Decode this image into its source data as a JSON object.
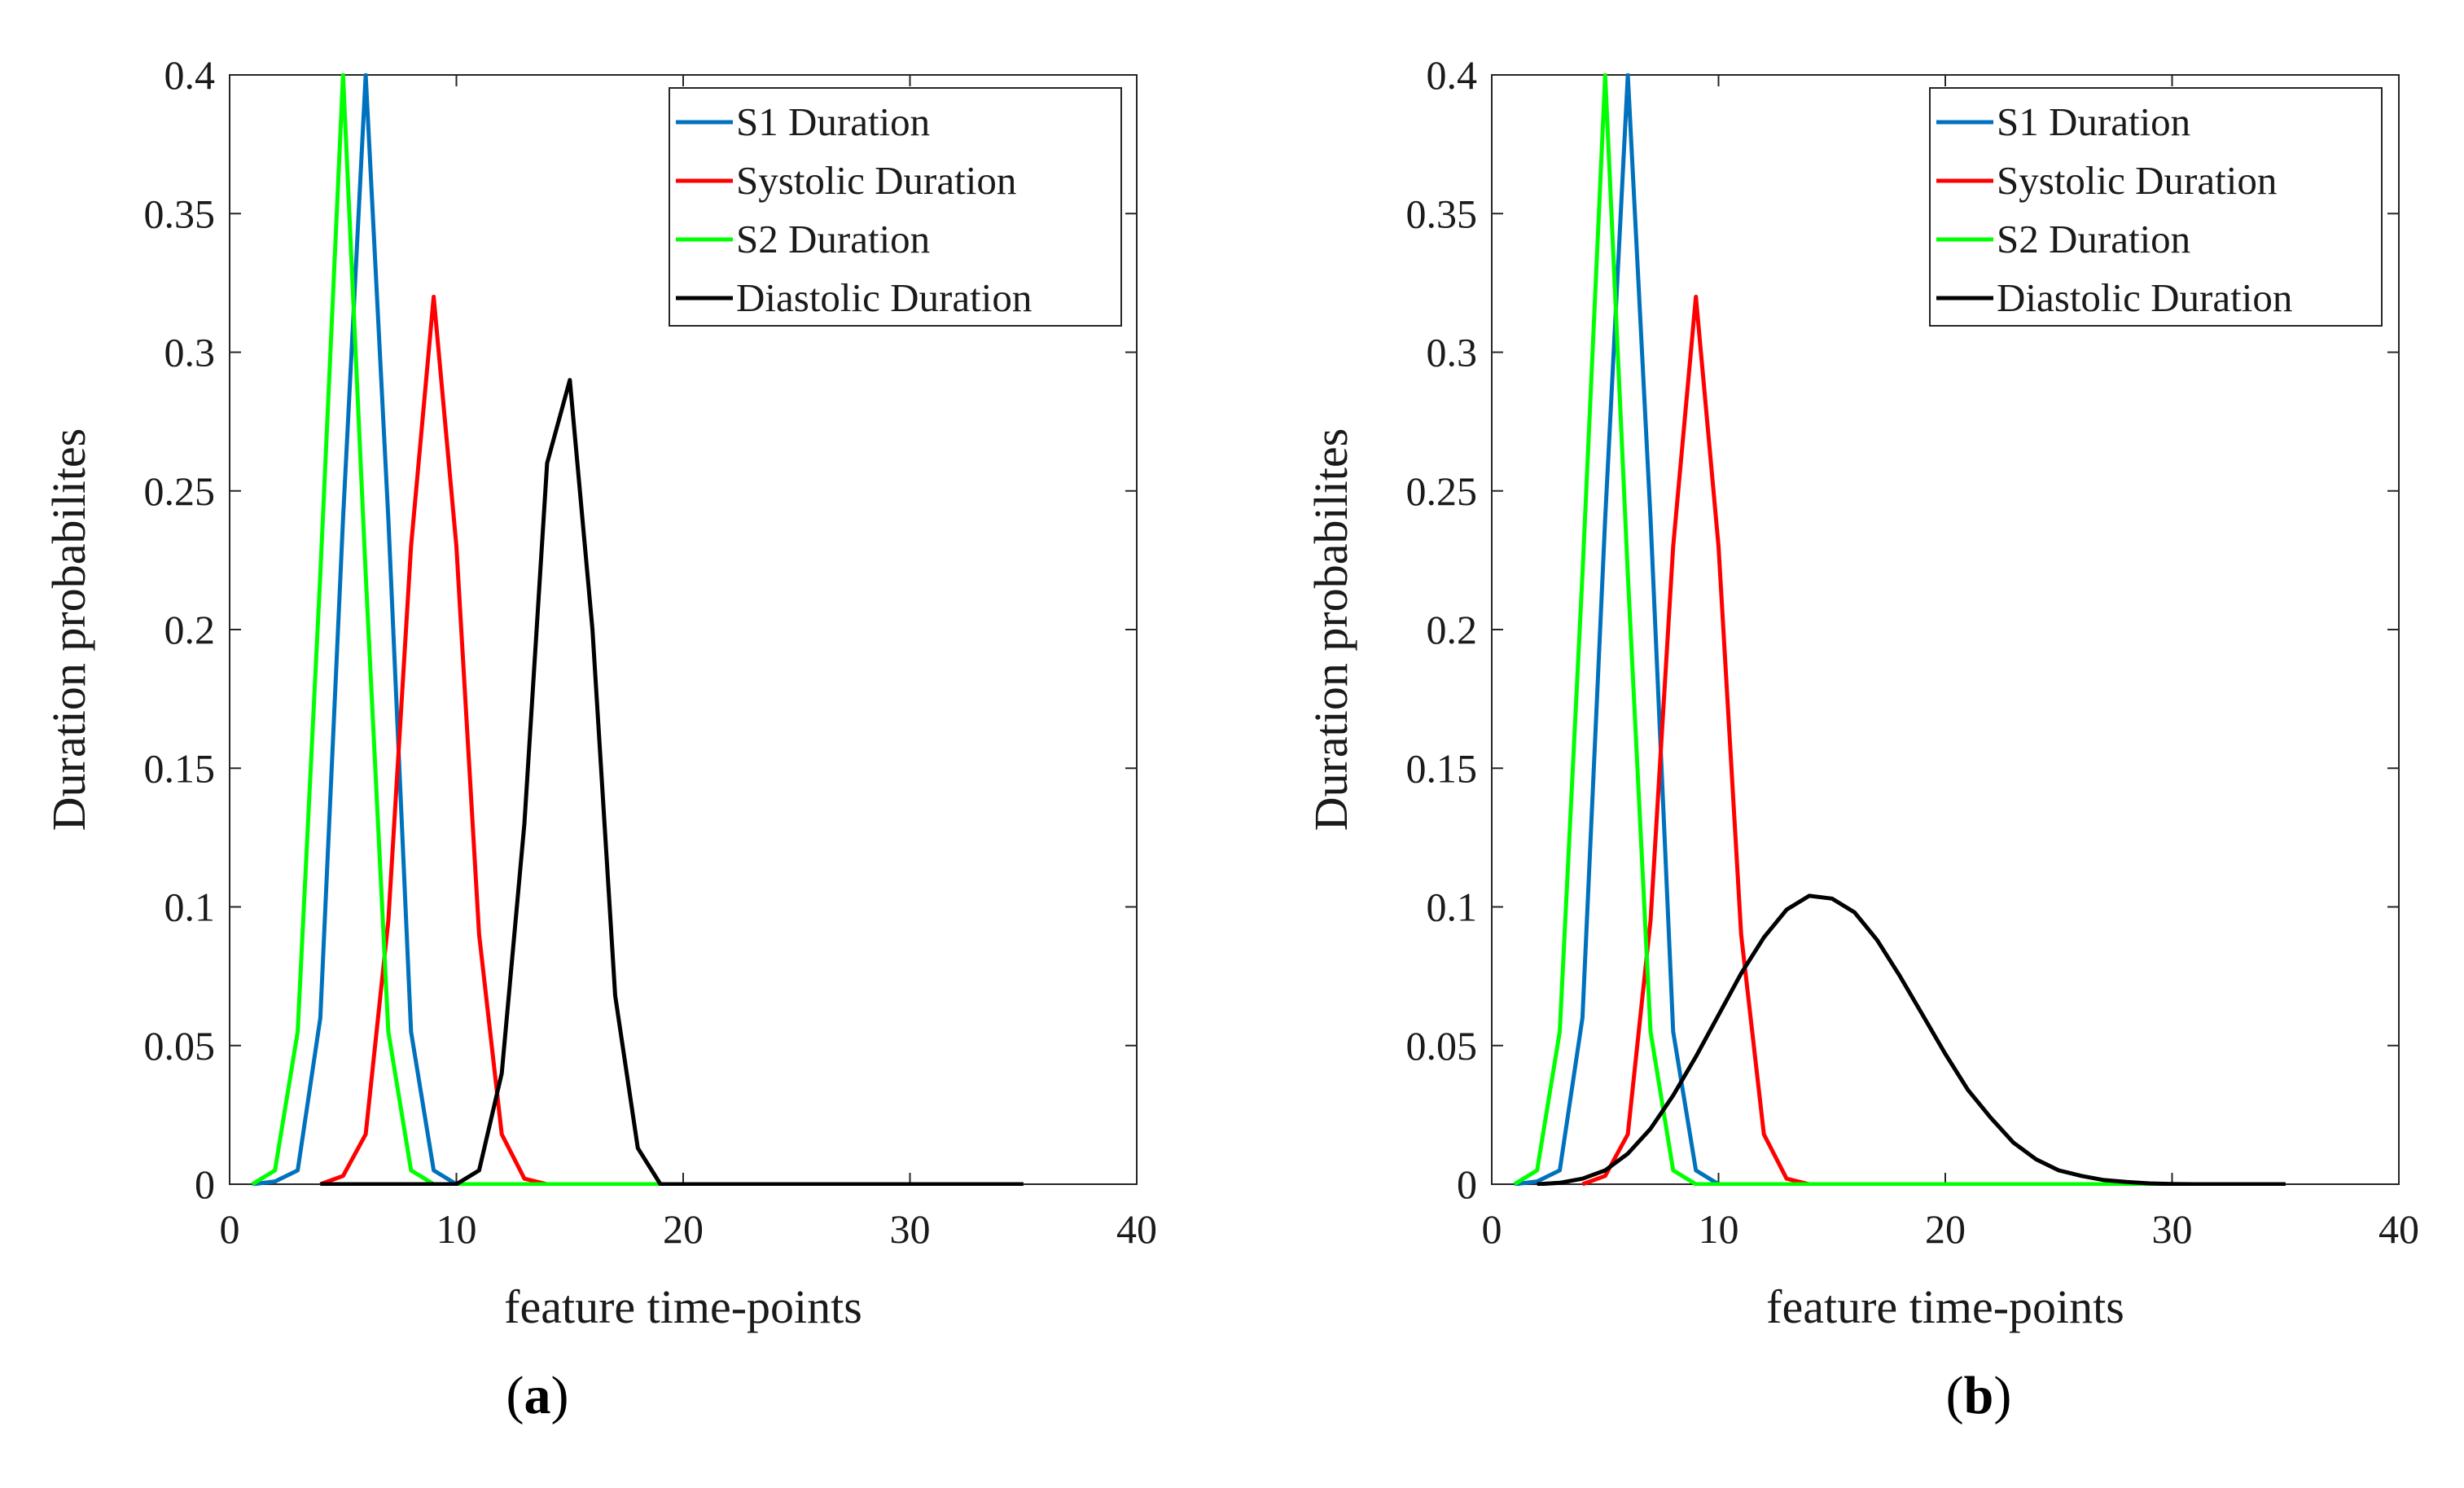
{
  "chart_data": [
    {
      "type": "line",
      "panel_label": "a",
      "xlabel": "feature time-points",
      "ylabel": "Duration probabilites",
      "xlim": [
        0,
        40
      ],
      "ylim": [
        0,
        0.4
      ],
      "xticks": [
        "0",
        "10",
        "20",
        "30",
        "40"
      ],
      "yticks": [
        "0",
        "0.05",
        "0.1",
        "0.15",
        "0.2",
        "0.25",
        "0.3",
        "0.35",
        "0.4"
      ],
      "legend_position": "top-right",
      "series": [
        {
          "name": "S1 Duration",
          "color": "#0072BD",
          "x": [
            1,
            2,
            3,
            4,
            5,
            6,
            7,
            8,
            9,
            10,
            11,
            12,
            13,
            14,
            15,
            16,
            17,
            18,
            19,
            20,
            25,
            30,
            35
          ],
          "y": [
            0,
            0.001,
            0.005,
            0.06,
            0.24,
            0.4,
            0.24,
            0.055,
            0.005,
            0,
            0,
            0,
            0,
            0,
            0,
            0,
            0,
            0,
            0,
            0,
            0,
            0,
            0
          ]
        },
        {
          "name": "Systolic Duration",
          "color": "#FF0000",
          "x": [
            4,
            5,
            6,
            7,
            8,
            9,
            10,
            11,
            12,
            13,
            14,
            15,
            20,
            25,
            30,
            35
          ],
          "y": [
            0,
            0.003,
            0.018,
            0.095,
            0.23,
            0.32,
            0.23,
            0.09,
            0.018,
            0.002,
            0,
            0,
            0,
            0,
            0,
            0
          ]
        },
        {
          "name": "S2 Duration",
          "color": "#00FF00",
          "x": [
            1,
            2,
            3,
            4,
            5,
            6,
            7,
            8,
            9,
            10,
            15,
            20,
            25,
            30,
            35
          ],
          "y": [
            0,
            0.005,
            0.055,
            0.22,
            0.4,
            0.22,
            0.055,
            0.005,
            0,
            0,
            0,
            0,
            0,
            0,
            0
          ]
        },
        {
          "name": "Diastolic Duration",
          "color": "#000000",
          "x": [
            4,
            9,
            10,
            11,
            12,
            13,
            14,
            15,
            16,
            17,
            18,
            19,
            20,
            25,
            30,
            35
          ],
          "y": [
            0,
            0,
            0,
            0.005,
            0.04,
            0.13,
            0.26,
            0.29,
            0.2,
            0.068,
            0.013,
            0,
            0,
            0,
            0,
            0
          ]
        }
      ]
    },
    {
      "type": "line",
      "panel_label": "b",
      "xlabel": "feature time-points",
      "ylabel": "Duration probabilites",
      "xlim": [
        0,
        40
      ],
      "ylim": [
        0,
        0.4
      ],
      "xticks": [
        "0",
        "10",
        "20",
        "30",
        "40"
      ],
      "yticks": [
        "0",
        "0.05",
        "0.1",
        "0.15",
        "0.2",
        "0.25",
        "0.3",
        "0.35",
        "0.4"
      ],
      "legend_position": "top-right",
      "series": [
        {
          "name": "S1 Duration",
          "color": "#0072BD",
          "x": [
            1,
            2,
            3,
            4,
            5,
            6,
            7,
            8,
            9,
            10,
            11,
            12,
            13,
            14,
            15,
            20,
            25,
            30,
            35
          ],
          "y": [
            0,
            0.001,
            0.005,
            0.06,
            0.24,
            0.4,
            0.24,
            0.055,
            0.005,
            0,
            0,
            0,
            0,
            0,
            0,
            0,
            0,
            0,
            0
          ]
        },
        {
          "name": "Systolic Duration",
          "color": "#FF0000",
          "x": [
            4,
            5,
            6,
            7,
            8,
            9,
            10,
            11,
            12,
            13,
            14,
            15,
            20,
            25,
            30,
            35
          ],
          "y": [
            0,
            0.003,
            0.018,
            0.095,
            0.23,
            0.32,
            0.23,
            0.09,
            0.018,
            0.002,
            0,
            0,
            0,
            0,
            0,
            0
          ]
        },
        {
          "name": "S2 Duration",
          "color": "#00FF00",
          "x": [
            1,
            2,
            3,
            4,
            5,
            6,
            7,
            8,
            9,
            10,
            15,
            20,
            25,
            30,
            35
          ],
          "y": [
            0,
            0.005,
            0.055,
            0.22,
            0.4,
            0.22,
            0.055,
            0.005,
            0,
            0,
            0,
            0,
            0,
            0,
            0
          ]
        },
        {
          "name": "Diastolic Duration",
          "color": "#000000",
          "x": [
            2,
            3,
            4,
            5,
            6,
            7,
            8,
            9,
            10,
            11,
            12,
            13,
            14,
            15,
            16,
            17,
            18,
            19,
            20,
            21,
            22,
            23,
            24,
            25,
            26,
            27,
            28,
            29,
            30,
            31,
            32,
            33,
            34,
            35
          ],
          "y": [
            0,
            0.0005,
            0.002,
            0.005,
            0.011,
            0.02,
            0.032,
            0.046,
            0.061,
            0.076,
            0.089,
            0.099,
            0.104,
            0.103,
            0.098,
            0.088,
            0.075,
            0.061,
            0.047,
            0.034,
            0.024,
            0.015,
            0.009,
            0.005,
            0.003,
            0.0015,
            0.0008,
            0.0003,
            0.0001,
            0,
            0,
            0,
            0,
            0
          ]
        }
      ]
    }
  ]
}
